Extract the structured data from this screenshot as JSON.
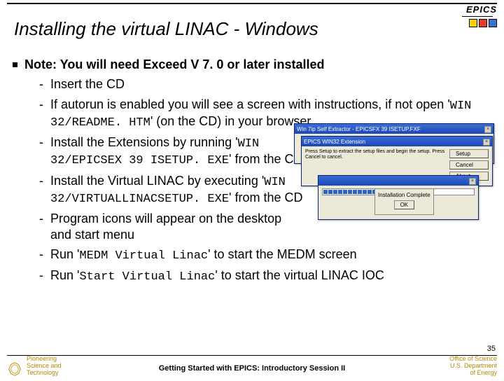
{
  "logo": {
    "text": "EPICS"
  },
  "title": "Installing the virtual LINAC - Windows",
  "note": "Note: You will need Exceed V 7. 0 or later installed",
  "items": [
    {
      "pre": "Insert the CD",
      "mono": "",
      "post": ""
    },
    {
      "pre": "If autorun is enabled you will see a screen with instructions, if not open '",
      "mono": "WIN 32/README. HTM",
      "post": "' (on the CD) in your browser"
    },
    {
      "pre": "Install the Extensions by running '",
      "mono": "WIN 32/EPICSEX 39 ISETUP. EXE",
      "post": "' from the CD",
      "narrow": true
    },
    {
      "pre": "Install the Virtual LINAC by executing '",
      "mono": "WIN 32/VIRTUALLINACSETUP. EXE",
      "post": "' from the CD",
      "narrow": true
    },
    {
      "pre": "Program icons will appear on the desktop and start menu",
      "mono": "",
      "post": "",
      "narrow": true
    },
    {
      "pre": "Run '",
      "mono": "MEDM Virtual Linac",
      "post": "' to start the MEDM screen"
    },
    {
      "pre": "Run '",
      "mono": "Start Virtual Linac",
      "post": "'  to start the virtual LINAC IOC"
    }
  ],
  "winmock": {
    "back_title": "Win 7ip Self Extractor - EPICSFX 39 ISETUP.FXF",
    "front_title": "EPICS WIN32 Extension",
    "body_text": "Press Setup to extract the setup files and begin the setup.  Press Cancel to cancel.",
    "btn_setup": "Setup",
    "btn_cancel": "Cancel",
    "btn_about": "About",
    "dlg_title": "Installation Complete",
    "dlg_ok": "OK"
  },
  "footer": {
    "pagenum": "35",
    "left1": "Pioneering",
    "left2": "Science and",
    "left3": "Technology",
    "center": "Getting Started with EPICS: Introductory Session II",
    "right1": "Office of Science",
    "right2": "U.S. Department",
    "right3": "of Energy"
  },
  "colors": {
    "footer_accent": "#b58a00",
    "titlebar_blue": "#1c47b7"
  }
}
